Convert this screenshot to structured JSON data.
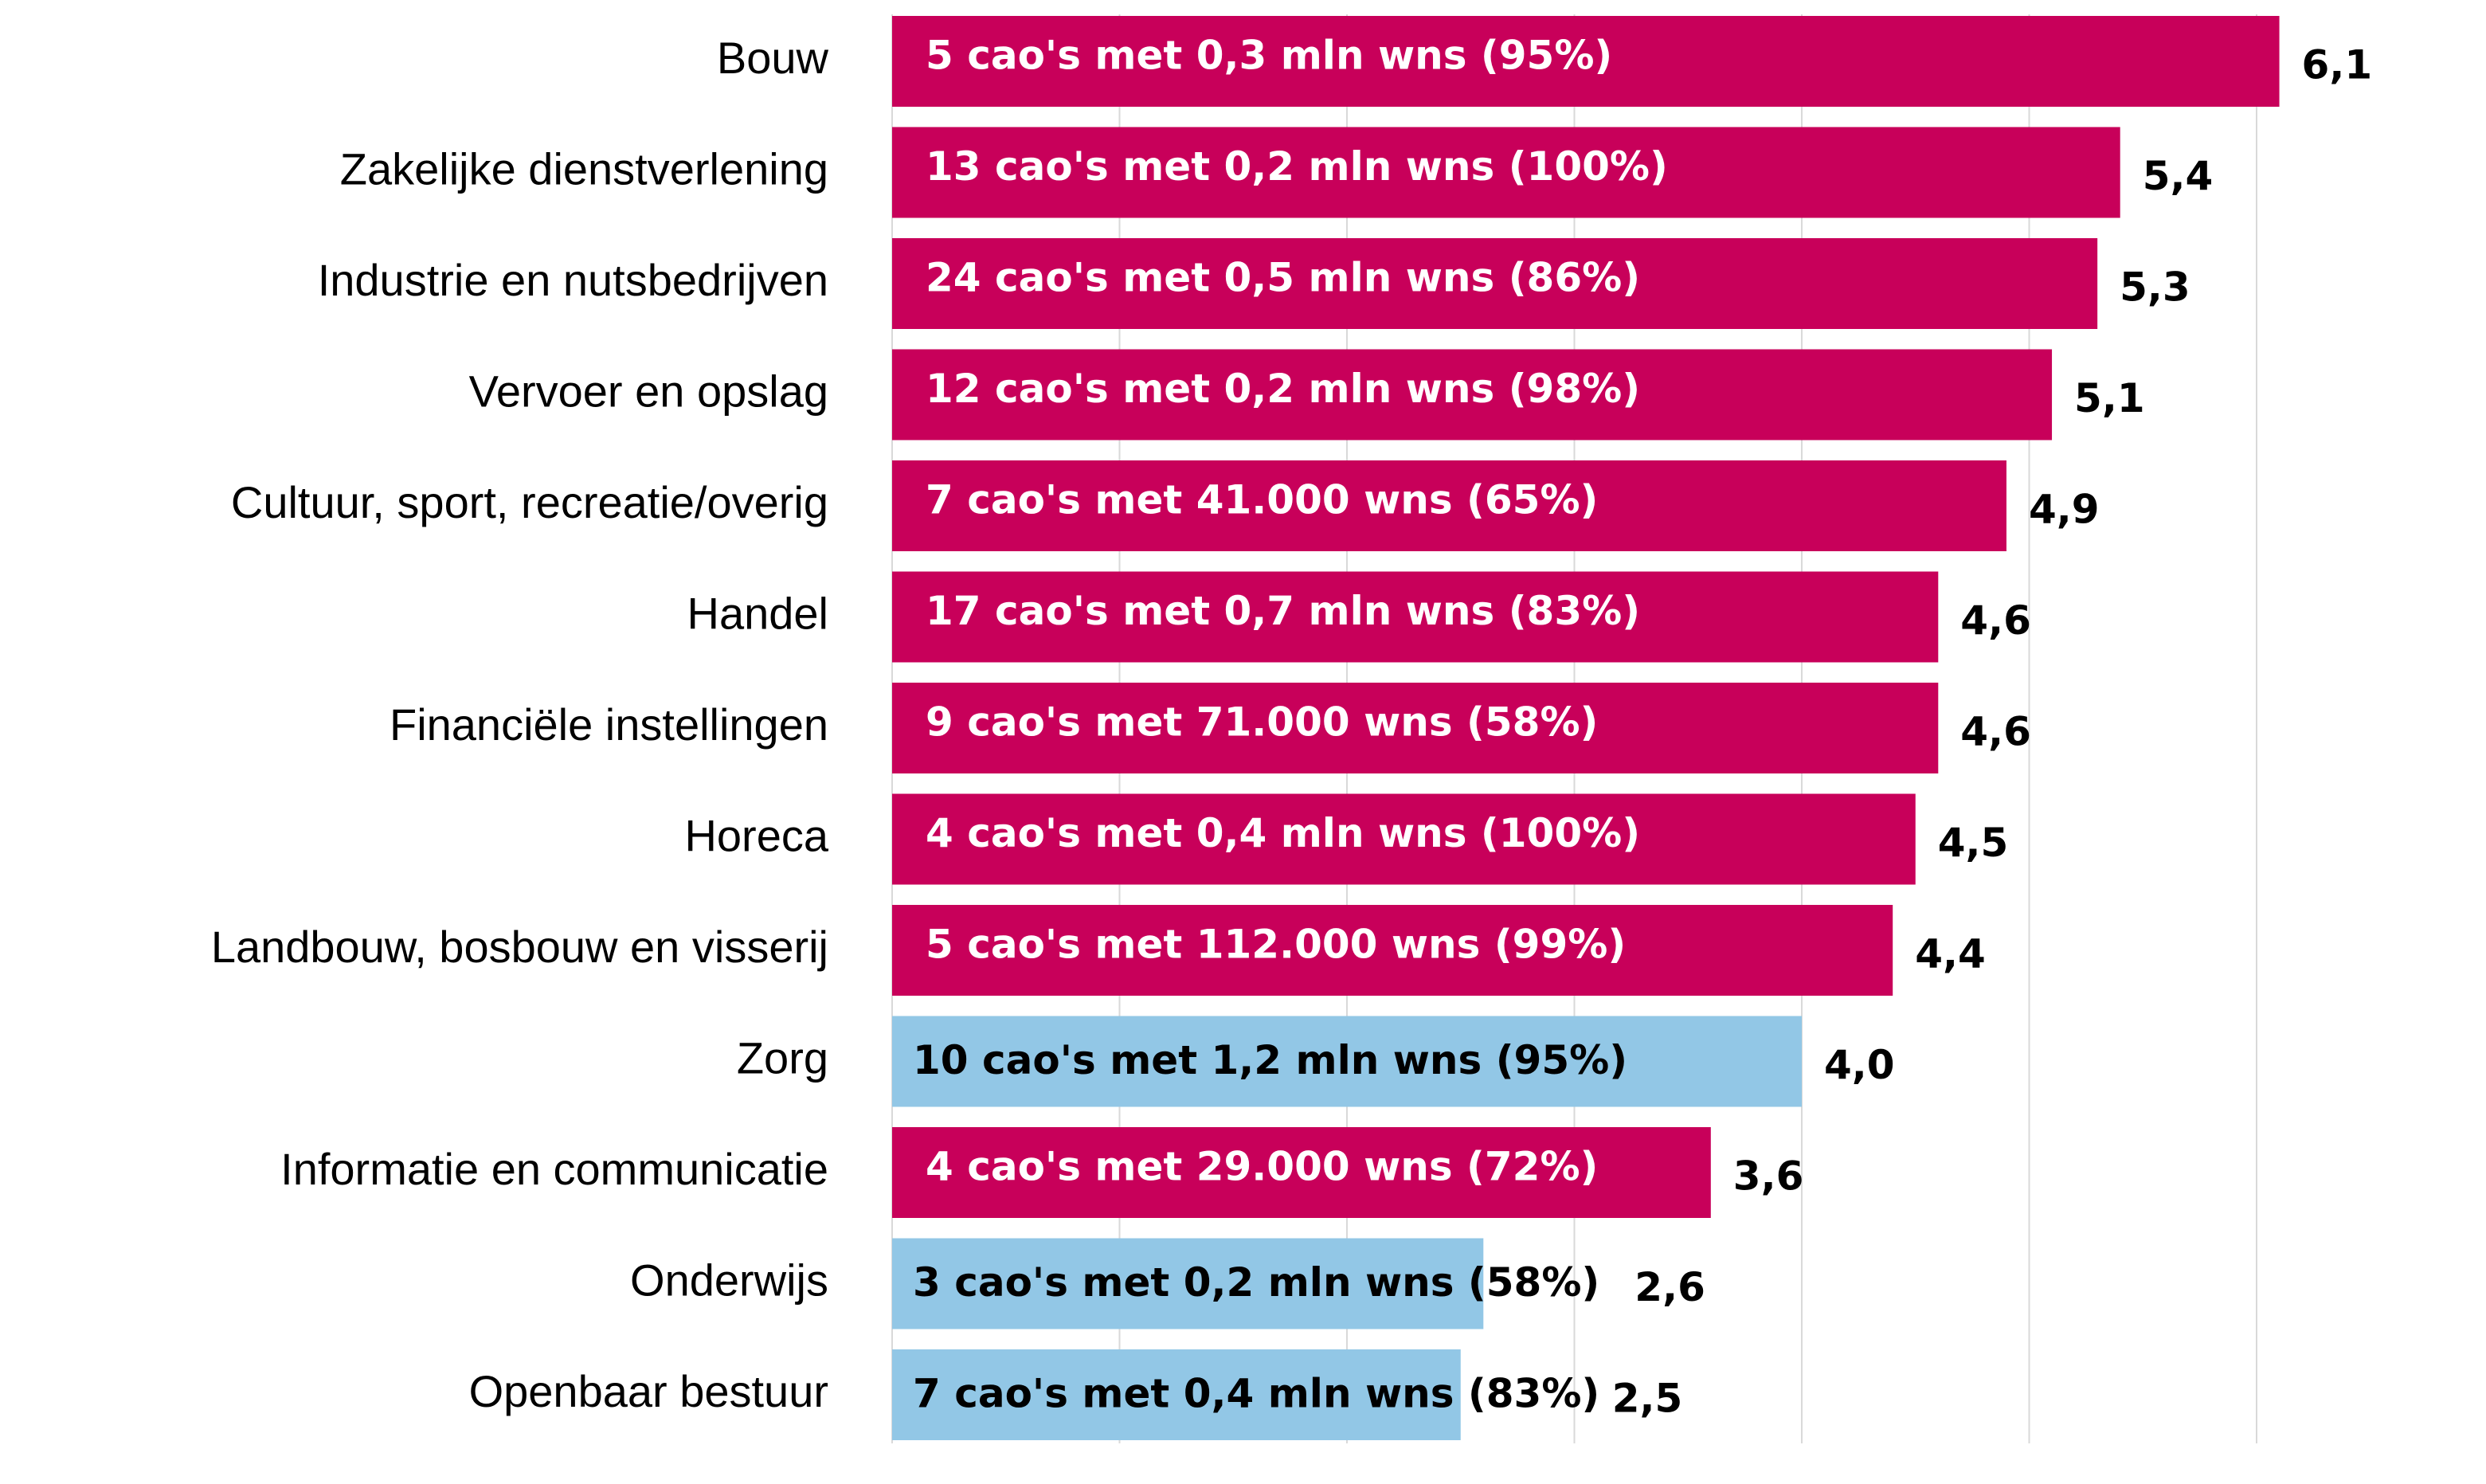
{
  "colors": {
    "magenta": "#c8005a",
    "light_blue": "#92c7e6",
    "gridline": "#d9d9d9",
    "text": "#000000",
    "white_text": "#ffffff"
  },
  "chart_data": {
    "type": "bar",
    "orientation": "horizontal",
    "title": "",
    "xlabel": "",
    "ylabel": "",
    "xlim": [
      0,
      6.1
    ],
    "grid": "vertical",
    "legend": "none",
    "categories": [
      "Bouw",
      "Zakelijke dienstverlening",
      "Industrie en nutsbedrijven",
      "Vervoer en opslag",
      "Cultuur, sport, recreatie/overig",
      "Handel",
      "Financiële instellingen",
      "Horeca",
      "Landbouw, bosbouw en visserij",
      "Zorg",
      "Informatie en communicatie",
      "Onderwijs",
      "Openbaar bestuur"
    ],
    "values": [
      6.1,
      5.4,
      5.3,
      5.1,
      4.9,
      4.6,
      4.6,
      4.5,
      4.4,
      4.0,
      3.6,
      2.6,
      2.5
    ],
    "value_labels": [
      "6,1",
      "5,4",
      "5,3",
      "5,1",
      "4,9",
      "4,6",
      "4,6",
      "4,5",
      "4,4",
      "4,0",
      "3,6",
      "2,6",
      "2,5"
    ],
    "bar_labels": [
      "5 cao's met 0,3 mln wns (95%)",
      "13 cao's met 0,2 mln wns (100%)",
      "24 cao's met 0,5 mln wns (86%)",
      "12 cao's met 0,2 mln wns (98%)",
      "7 cao's met 41.000 wns (65%)",
      "17 cao's met 0,7 mln wns (83%)",
      "9 cao's met 71.000 wns (58%)",
      "4 cao's met 0,4 mln wns (100%)",
      "5 cao's met 112.000 wns (99%)",
      "10 cao's met 1,2 mln wns (95%)",
      "4 cao's met 29.000 wns (72%)",
      "3 cao's met 0,2 mln wns (58%)",
      "7 cao's met 0,4 mln wns (83%)"
    ],
    "bar_colors": [
      "magenta",
      "magenta",
      "magenta",
      "magenta",
      "magenta",
      "magenta",
      "magenta",
      "magenta",
      "magenta",
      "light_blue",
      "magenta",
      "light_blue",
      "light_blue"
    ]
  }
}
